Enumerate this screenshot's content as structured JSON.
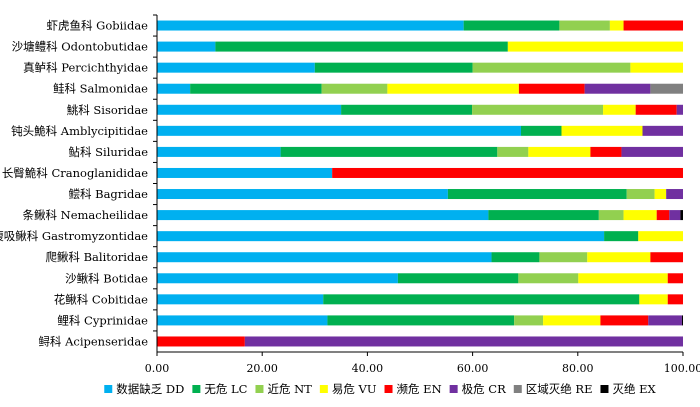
{
  "chart_data": {
    "type": "bar",
    "orientation": "horizontal",
    "stacked": true,
    "xlim": [
      0,
      100
    ],
    "x_ticks": [
      "0.00",
      "20.00",
      "40.00",
      "60.00",
      "80.00",
      "100.00"
    ],
    "grid": false,
    "legend_position": "bottom",
    "categories": [
      "虾虎鱼科 Gobiidae",
      "沙塘鳢科 Odontobutidae",
      "真鲈科 Percichthyidae",
      "鲑科 Salmonidae",
      "鮡科 Sisoridae",
      "钝头鮠科 Amblycipitidae",
      "鲇科 Siluridae",
      "长臀鮠科 Cranoglanididae",
      "鲿科 Bagridae",
      "条鳅科 Nemacheilidae",
      "腹吸鳅科 Gastromyzontidae",
      "爬鳅科 Balitoridae",
      "沙鳅科 Botidae",
      "花鳅科 Cobitidae",
      "鲤科 Cyprinidae",
      "鲟科 Acipenseridae"
    ],
    "series": [
      {
        "name": "数据缺乏 DD",
        "color": "#00b0f0",
        "values": [
          58.3,
          11.1,
          30.0,
          6.3,
          35.0,
          69.2,
          23.5,
          33.3,
          55.3,
          63.0,
          85.0,
          63.6,
          45.8,
          31.6,
          32.4,
          0.0
        ]
      },
      {
        "name": "无危 LC",
        "color": "#00b050",
        "values": [
          18.2,
          55.6,
          30.0,
          25.0,
          24.9,
          7.7,
          41.2,
          0.0,
          34.0,
          21.0,
          6.5,
          9.1,
          22.9,
          60.1,
          35.5,
          0.0
        ]
      },
      {
        "name": "近危 NT",
        "color": "#92d050",
        "values": [
          9.6,
          0.0,
          30.0,
          12.5,
          24.9,
          0.0,
          5.9,
          0.0,
          5.3,
          4.7,
          0.0,
          9.1,
          11.4,
          0.0,
          5.5,
          0.0
        ]
      },
      {
        "name": "易危 VU",
        "color": "#ffff00",
        "values": [
          2.6,
          33.3,
          10.0,
          25.0,
          6.2,
          15.4,
          11.8,
          0.0,
          2.2,
          6.3,
          8.5,
          12.0,
          17.0,
          5.4,
          10.9,
          0.0
        ]
      },
      {
        "name": "濒危 EN",
        "color": "#ff0000",
        "values": [
          11.3,
          0.0,
          0.0,
          12.5,
          7.8,
          0.0,
          5.9,
          66.7,
          0.0,
          2.4,
          0.0,
          6.2,
          2.9,
          2.9,
          9.1,
          16.7
        ]
      },
      {
        "name": "极危 CR",
        "color": "#7030a0",
        "values": [
          0.0,
          0.0,
          0.0,
          12.5,
          1.2,
          7.7,
          11.7,
          0.0,
          3.2,
          2.1,
          0.0,
          0.0,
          0.0,
          0.0,
          6.4,
          83.3
        ]
      },
      {
        "name": "区域灭绝 RE",
        "color": "#808080",
        "values": [
          0.0,
          0.0,
          0.0,
          6.2,
          0.0,
          0.0,
          0.0,
          0.0,
          0.0,
          0.0,
          0.0,
          0.0,
          0.0,
          0.0,
          0.0,
          0.0
        ]
      },
      {
        "name": "灭绝 EX",
        "color": "#000000",
        "values": [
          0.0,
          0.0,
          0.0,
          0.0,
          0.0,
          0.0,
          0.0,
          0.0,
          0.0,
          0.5,
          0.0,
          0.0,
          0.0,
          0.0,
          0.2,
          0.0
        ]
      }
    ]
  }
}
